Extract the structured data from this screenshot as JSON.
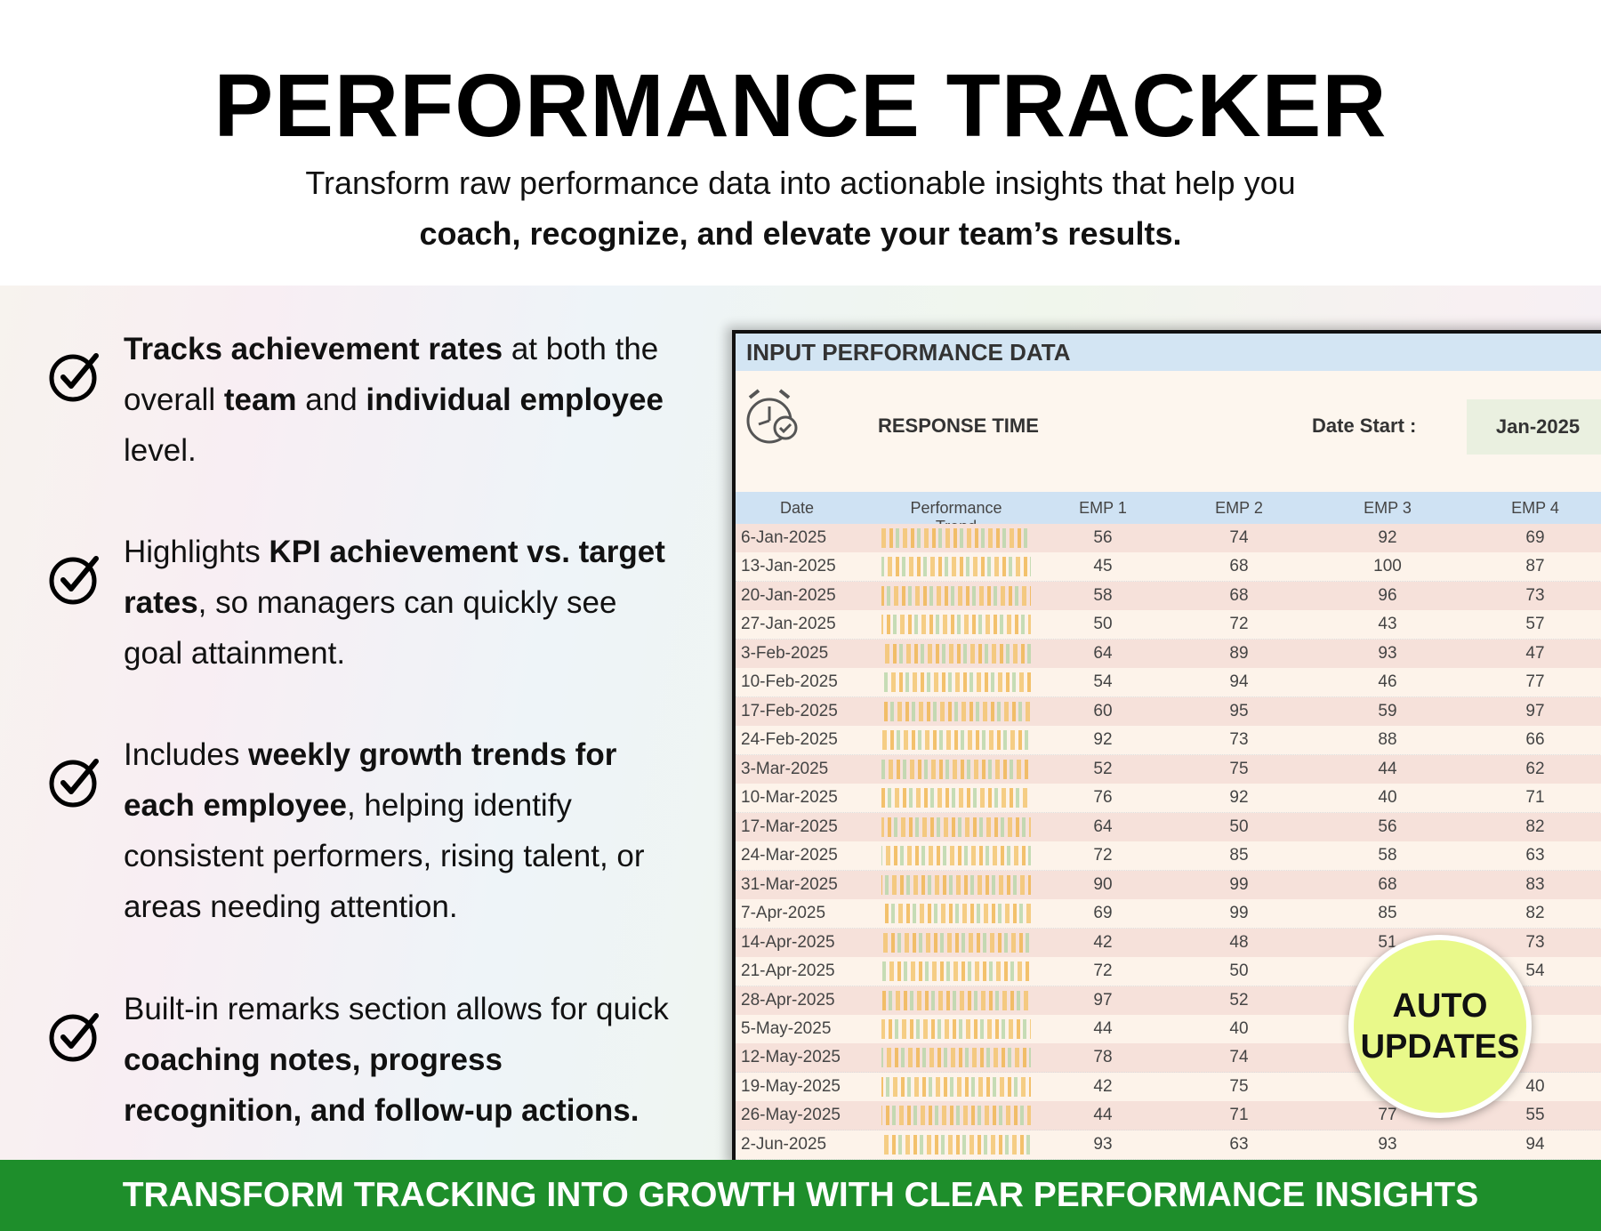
{
  "header": {
    "title": "PERFORMANCE TRACKER",
    "subtitle": "Transform raw performance data into actionable insights that help you",
    "subtitle_bold": "coach, recognize, and elevate your team’s results."
  },
  "features": [
    [
      {
        "text": "Tracks achievement rates",
        "bold": true
      },
      {
        "text": " at both the overall ",
        "bold": false
      },
      {
        "text": "team",
        "bold": true
      },
      {
        "text": " and ",
        "bold": false
      },
      {
        "text": "individual employee",
        "bold": true
      },
      {
        "text": " level.",
        "bold": false
      }
    ],
    [
      {
        "text": "Highlights ",
        "bold": false
      },
      {
        "text": "KPI achievement vs. target rates",
        "bold": true
      },
      {
        "text": ", so managers can quickly see goal attainment.",
        "bold": false
      }
    ],
    [
      {
        "text": "Includes ",
        "bold": false
      },
      {
        "text": "weekly growth trends for each employee",
        "bold": true
      },
      {
        "text": ", helping identify consistent performers, rising talent, or areas needing attention.",
        "bold": false
      }
    ],
    [
      {
        "text": "Built-in remarks section allows for quick ",
        "bold": false
      },
      {
        "text": "coaching notes, progress recognition, and follow-up actions.",
        "bold": true
      }
    ]
  ],
  "sheet": {
    "title": "INPUT PERFORMANCE DATA",
    "metric": "RESPONSE TIME",
    "date_start_label": "Date Start :",
    "date_start": "Jan-2025",
    "columns": [
      "Date",
      "Performance Trend",
      "EMP 1",
      "EMP 2",
      "EMP 3",
      "EMP 4"
    ],
    "rows": [
      [
        "6-Jan-2025",
        56,
        74,
        92,
        69
      ],
      [
        "13-Jan-2025",
        45,
        68,
        100,
        87
      ],
      [
        "20-Jan-2025",
        58,
        68,
        96,
        73
      ],
      [
        "27-Jan-2025",
        50,
        72,
        43,
        57
      ],
      [
        "3-Feb-2025",
        64,
        89,
        93,
        47
      ],
      [
        "10-Feb-2025",
        54,
        94,
        46,
        77
      ],
      [
        "17-Feb-2025",
        60,
        95,
        59,
        97
      ],
      [
        "24-Feb-2025",
        92,
        73,
        88,
        66
      ],
      [
        "3-Mar-2025",
        52,
        75,
        44,
        62
      ],
      [
        "10-Mar-2025",
        76,
        92,
        40,
        71
      ],
      [
        "17-Mar-2025",
        64,
        50,
        56,
        82
      ],
      [
        "24-Mar-2025",
        72,
        85,
        58,
        63
      ],
      [
        "31-Mar-2025",
        90,
        99,
        68,
        83
      ],
      [
        "7-Apr-2025",
        69,
        99,
        85,
        82
      ],
      [
        "14-Apr-2025",
        42,
        48,
        51,
        73
      ],
      [
        "21-Apr-2025",
        72,
        50,
        null,
        54
      ],
      [
        "28-Apr-2025",
        97,
        52,
        null,
        null
      ],
      [
        "5-May-2025",
        44,
        40,
        null,
        null
      ],
      [
        "12-May-2025",
        78,
        74,
        null,
        null
      ],
      [
        "19-May-2025",
        42,
        75,
        null,
        40
      ],
      [
        "26-May-2025",
        44,
        71,
        77,
        55
      ],
      [
        "2-Jun-2025",
        93,
        63,
        93,
        94
      ]
    ]
  },
  "badge": {
    "lines": [
      "AUTO",
      "UPDATES"
    ]
  },
  "footer": "TRANSFORM TRACKING INTO GROWTH WITH CLEAR PERFORMANCE INSIGHTS"
}
